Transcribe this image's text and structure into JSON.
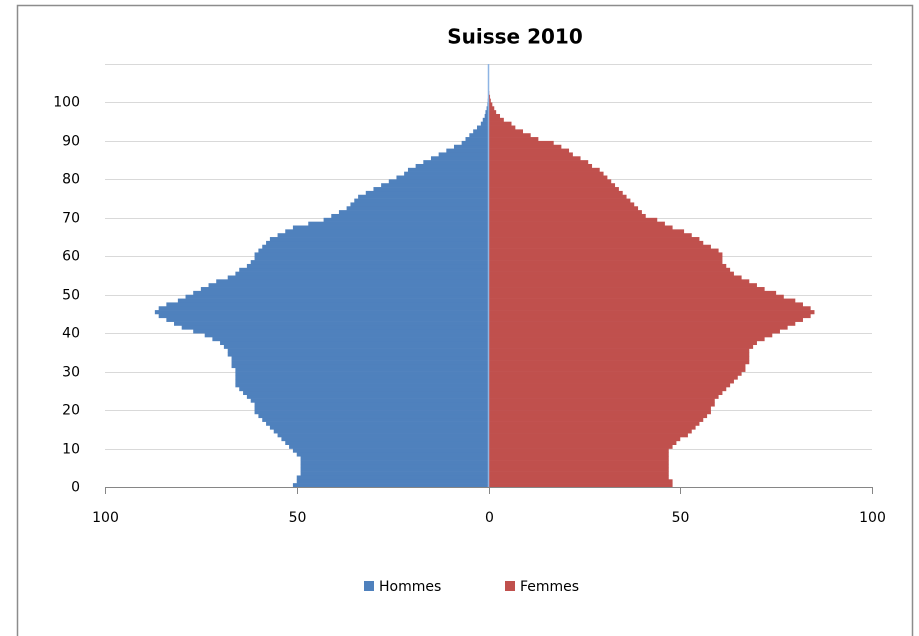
{
  "chart_data": {
    "type": "pyramid",
    "title": "Suisse 2010",
    "x": [
      0,
      1,
      2,
      3,
      4,
      5,
      6,
      7,
      8,
      9,
      10,
      11,
      12,
      13,
      14,
      15,
      16,
      17,
      18,
      19,
      20,
      21,
      22,
      23,
      24,
      25,
      26,
      27,
      28,
      29,
      30,
      31,
      32,
      33,
      34,
      35,
      36,
      37,
      38,
      39,
      40,
      41,
      42,
      43,
      44,
      45,
      46,
      47,
      48,
      49,
      50,
      51,
      52,
      53,
      54,
      55,
      56,
      57,
      58,
      59,
      60,
      61,
      62,
      63,
      64,
      65,
      66,
      67,
      68,
      69,
      70,
      71,
      72,
      73,
      74,
      75,
      76,
      77,
      78,
      79,
      80,
      81,
      82,
      83,
      84,
      85,
      86,
      87,
      88,
      89,
      90,
      91,
      92,
      93,
      94,
      95,
      96,
      97,
      98,
      99,
      100,
      101,
      102,
      103,
      104,
      105,
      106,
      107,
      108,
      109
    ],
    "series": [
      {
        "name": "Hommes",
        "color": "#4f81bd",
        "side": "left",
        "values": [
          51,
          50,
          50,
          49,
          49,
          49,
          49,
          49,
          50,
          51,
          52,
          53,
          54,
          55,
          56,
          57,
          58,
          59,
          60,
          61,
          61,
          61,
          62,
          63,
          64,
          65,
          66,
          66,
          66,
          66,
          66,
          67,
          67,
          67,
          68,
          68,
          69,
          70,
          72,
          74,
          77,
          80,
          82,
          84,
          86,
          87,
          86,
          84,
          81,
          79,
          77,
          75,
          73,
          71,
          68,
          66,
          65,
          63,
          62,
          61,
          61,
          60,
          59,
          58,
          57,
          55,
          53,
          51,
          47,
          43,
          41,
          39,
          37,
          36,
          35,
          34,
          32,
          30,
          28,
          26,
          24,
          22,
          21,
          19,
          17,
          15,
          13,
          11,
          9,
          7,
          6,
          5,
          4,
          3,
          2,
          1.5,
          1,
          0.8,
          0.5,
          0.3,
          0.2,
          0.1,
          0.1,
          0.1,
          0,
          0,
          0,
          0,
          0,
          0
        ]
      },
      {
        "name": "Femmes",
        "color": "#c0504d",
        "side": "right",
        "values": [
          48,
          48,
          47,
          47,
          47,
          47,
          47,
          47,
          47,
          47,
          48,
          49,
          50,
          52,
          53,
          54,
          55,
          56,
          57,
          58,
          58,
          59,
          59,
          60,
          61,
          62,
          63,
          64,
          65,
          66,
          67,
          67,
          68,
          68,
          68,
          68,
          69,
          70,
          72,
          74,
          76,
          78,
          80,
          82,
          84,
          85,
          84,
          82,
          80,
          77,
          75,
          72,
          70,
          68,
          66,
          64,
          63,
          62,
          61,
          61,
          61,
          60,
          58,
          56,
          55,
          53,
          51,
          48,
          46,
          44,
          41,
          40,
          39,
          38,
          37,
          36,
          35,
          34,
          33,
          32,
          31,
          30,
          29,
          27,
          26,
          24,
          22,
          21,
          19,
          17,
          13,
          11,
          9,
          7,
          6,
          4,
          3,
          2,
          1.5,
          1,
          0.6,
          0.4,
          0.2,
          0.1,
          0.1,
          0,
          0,
          0,
          0,
          0
        ]
      }
    ],
    "xlim": [
      -100,
      100
    ],
    "xticks": [
      {
        "value": -100,
        "label": "100"
      },
      {
        "value": -50,
        "label": "50"
      },
      0,
      50,
      100
    ],
    "ylim": [
      0,
      110
    ],
    "yticks": [
      0,
      10,
      20,
      30,
      40,
      50,
      60,
      70,
      80,
      90,
      100
    ],
    "grid": true
  }
}
